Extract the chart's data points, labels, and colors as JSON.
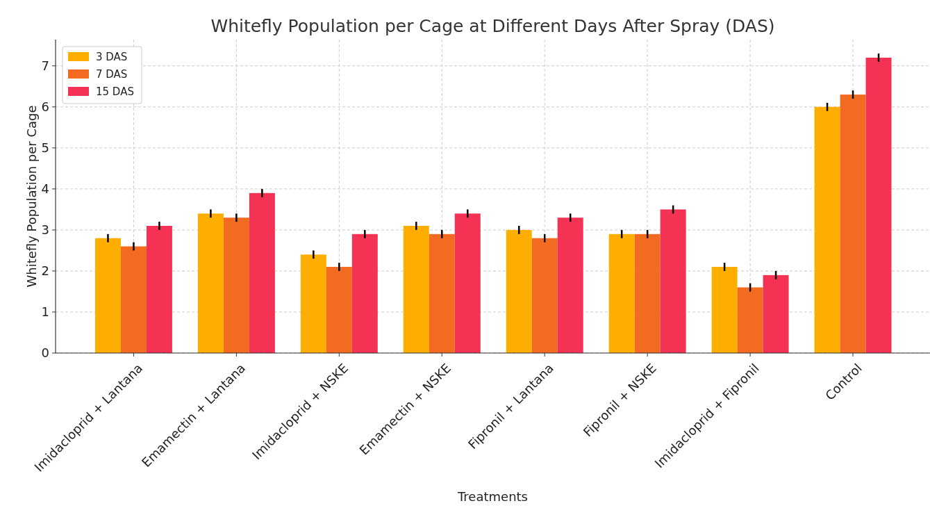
{
  "chart_data": {
    "type": "bar",
    "title": "Whitefly Population per Cage at Different Days After Spray (DAS)",
    "xlabel": "Treatments",
    "ylabel": "Whitefly Population per Cage",
    "categories": [
      "Imidacloprid + Lantana",
      "Emamectin + Lantana",
      "Imidacloprid + NSKE",
      "Emamectin + NSKE",
      "Fipronil + Lantana",
      "Fipronil + NSKE",
      "Imidacloprid + Fipronil",
      "Control"
    ],
    "series": [
      {
        "name": "3 DAS",
        "color": "#ffae00",
        "values": [
          2.8,
          3.4,
          2.4,
          3.1,
          3.0,
          2.9,
          2.1,
          6.0
        ],
        "errors": [
          0.1,
          0.1,
          0.1,
          0.1,
          0.1,
          0.1,
          0.1,
          0.1
        ]
      },
      {
        "name": "7 DAS",
        "color": "#f26b21",
        "values": [
          2.6,
          3.3,
          2.1,
          2.9,
          2.8,
          2.9,
          1.6,
          6.3
        ],
        "errors": [
          0.1,
          0.1,
          0.1,
          0.1,
          0.1,
          0.1,
          0.1,
          0.1
        ]
      },
      {
        "name": "15 DAS",
        "color": "#f43254",
        "values": [
          3.1,
          3.9,
          2.9,
          3.4,
          3.3,
          3.5,
          1.9,
          7.2
        ],
        "errors": [
          0.1,
          0.1,
          0.1,
          0.1,
          0.1,
          0.1,
          0.1,
          0.1
        ]
      }
    ],
    "ylim": [
      0,
      7.64
    ],
    "yticks": [
      0,
      1,
      2,
      3,
      4,
      5,
      6,
      7
    ],
    "grid": true,
    "legend": "top left"
  }
}
